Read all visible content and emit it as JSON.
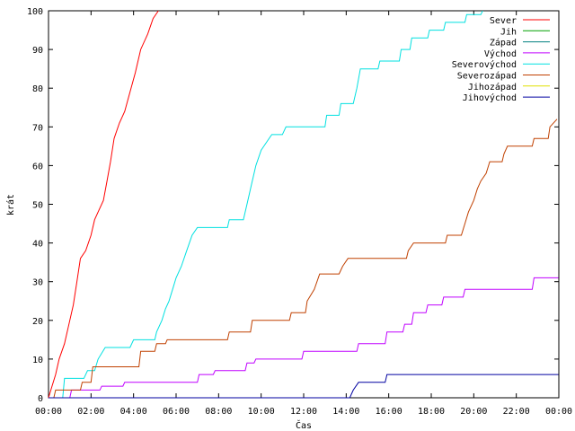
{
  "chart_data": {
    "type": "line",
    "xlabel": "Čas",
    "ylabel": "krát",
    "x_ticks": [
      "00:00",
      "02:00",
      "04:00",
      "06:00",
      "08:00",
      "10:00",
      "12:00",
      "14:00",
      "16:00",
      "18:00",
      "20:00",
      "22:00",
      "00:00"
    ],
    "xlim": [
      "00:00",
      "24:00"
    ],
    "ylim": [
      0,
      100
    ],
    "y_ticks": [
      0,
      10,
      20,
      30,
      40,
      50,
      60,
      70,
      80,
      90,
      100
    ],
    "grid": false,
    "legend_position": "top-right",
    "series": [
      {
        "name": "Sever",
        "color": "#ff0000",
        "points": [
          [
            "00:00",
            0
          ],
          [
            "00:10",
            3
          ],
          [
            "00:20",
            6
          ],
          [
            "00:30",
            10
          ],
          [
            "00:45",
            14
          ],
          [
            "01:00",
            20
          ],
          [
            "01:10",
            24
          ],
          [
            "01:20",
            30
          ],
          [
            "01:30",
            36
          ],
          [
            "01:45",
            38
          ],
          [
            "02:00",
            42
          ],
          [
            "02:10",
            46
          ],
          [
            "02:20",
            48
          ],
          [
            "02:35",
            51
          ],
          [
            "02:45",
            56
          ],
          [
            "02:55",
            61
          ],
          [
            "03:05",
            67
          ],
          [
            "03:20",
            71
          ],
          [
            "03:35",
            74
          ],
          [
            "03:50",
            79
          ],
          [
            "04:05",
            84
          ],
          [
            "04:20",
            90
          ],
          [
            "04:40",
            94
          ],
          [
            "04:55",
            98
          ],
          [
            "05:10",
            100
          ]
        ]
      },
      {
        "name": "Jih",
        "color": "#00a000",
        "points": []
      },
      {
        "name": "Západ",
        "color": "#008080",
        "points": []
      },
      {
        "name": "Východ",
        "color": "#c000ff",
        "points": [
          [
            "00:00",
            0
          ],
          [
            "01:00",
            0
          ],
          [
            "01:05",
            2
          ],
          [
            "02:25",
            2
          ],
          [
            "02:30",
            3
          ],
          [
            "03:30",
            3
          ],
          [
            "03:35",
            4
          ],
          [
            "07:00",
            4
          ],
          [
            "07:05",
            6
          ],
          [
            "07:45",
            6
          ],
          [
            "07:50",
            7
          ],
          [
            "09:15",
            7
          ],
          [
            "09:20",
            9
          ],
          [
            "09:40",
            9
          ],
          [
            "09:45",
            10
          ],
          [
            "11:55",
            10
          ],
          [
            "12:00",
            12
          ],
          [
            "14:30",
            12
          ],
          [
            "14:35",
            14
          ],
          [
            "15:50",
            14
          ],
          [
            "15:55",
            17
          ],
          [
            "16:40",
            17
          ],
          [
            "16:45",
            19
          ],
          [
            "17:05",
            19
          ],
          [
            "17:10",
            22
          ],
          [
            "17:45",
            22
          ],
          [
            "17:50",
            24
          ],
          [
            "18:30",
            24
          ],
          [
            "18:35",
            26
          ],
          [
            "19:30",
            26
          ],
          [
            "19:35",
            28
          ],
          [
            "22:45",
            28
          ],
          [
            "22:50",
            31
          ],
          [
            "23:59",
            31
          ]
        ]
      },
      {
        "name": "Severovýchod",
        "color": "#00e0e0",
        "points": [
          [
            "00:00",
            0
          ],
          [
            "00:40",
            0
          ],
          [
            "00:45",
            5
          ],
          [
            "01:40",
            5
          ],
          [
            "01:50",
            7
          ],
          [
            "02:10",
            7
          ],
          [
            "02:20",
            10
          ],
          [
            "02:40",
            13
          ],
          [
            "03:50",
            13
          ],
          [
            "04:00",
            15
          ],
          [
            "05:00",
            15
          ],
          [
            "05:05",
            17
          ],
          [
            "05:20",
            20
          ],
          [
            "05:30",
            23
          ],
          [
            "05:40",
            25
          ],
          [
            "05:50",
            28
          ],
          [
            "06:00",
            31
          ],
          [
            "06:15",
            34
          ],
          [
            "06:30",
            38
          ],
          [
            "06:45",
            42
          ],
          [
            "07:00",
            44
          ],
          [
            "08:25",
            44
          ],
          [
            "08:30",
            46
          ],
          [
            "09:10",
            46
          ],
          [
            "09:20",
            50
          ],
          [
            "09:35",
            56
          ],
          [
            "09:45",
            60
          ],
          [
            "10:00",
            64
          ],
          [
            "10:15",
            66
          ],
          [
            "10:30",
            68
          ],
          [
            "11:00",
            68
          ],
          [
            "11:10",
            70
          ],
          [
            "13:00",
            70
          ],
          [
            "13:05",
            73
          ],
          [
            "13:40",
            73
          ],
          [
            "13:45",
            76
          ],
          [
            "14:20",
            76
          ],
          [
            "14:30",
            80
          ],
          [
            "14:40",
            85
          ],
          [
            "15:30",
            85
          ],
          [
            "15:35",
            87
          ],
          [
            "16:30",
            87
          ],
          [
            "16:35",
            90
          ],
          [
            "17:00",
            90
          ],
          [
            "17:05",
            93
          ],
          [
            "17:50",
            93
          ],
          [
            "17:55",
            95
          ],
          [
            "18:35",
            95
          ],
          [
            "18:40",
            97
          ],
          [
            "19:35",
            97
          ],
          [
            "19:40",
            99
          ],
          [
            "20:20",
            99
          ],
          [
            "20:25",
            100
          ]
        ]
      },
      {
        "name": "Severozápad",
        "color": "#c04000",
        "points": [
          [
            "00:00",
            0
          ],
          [
            "00:15",
            0
          ],
          [
            "00:20",
            2
          ],
          [
            "01:30",
            2
          ],
          [
            "01:35",
            4
          ],
          [
            "02:00",
            4
          ],
          [
            "02:05",
            8
          ],
          [
            "04:15",
            8
          ],
          [
            "04:20",
            12
          ],
          [
            "05:00",
            12
          ],
          [
            "05:05",
            14
          ],
          [
            "05:30",
            14
          ],
          [
            "05:35",
            15
          ],
          [
            "08:25",
            15
          ],
          [
            "08:30",
            17
          ],
          [
            "09:30",
            17
          ],
          [
            "09:35",
            20
          ],
          [
            "11:20",
            20
          ],
          [
            "11:25",
            22
          ],
          [
            "12:05",
            22
          ],
          [
            "12:10",
            25
          ],
          [
            "12:30",
            28
          ],
          [
            "12:45",
            32
          ],
          [
            "13:40",
            32
          ],
          [
            "13:50",
            34
          ],
          [
            "14:05",
            36
          ],
          [
            "16:50",
            36
          ],
          [
            "16:55",
            38
          ],
          [
            "17:10",
            40
          ],
          [
            "18:40",
            40
          ],
          [
            "18:45",
            42
          ],
          [
            "19:25",
            42
          ],
          [
            "19:35",
            45
          ],
          [
            "19:45",
            48
          ],
          [
            "20:00",
            51
          ],
          [
            "20:10",
            54
          ],
          [
            "20:20",
            56
          ],
          [
            "20:35",
            58
          ],
          [
            "20:45",
            61
          ],
          [
            "21:20",
            61
          ],
          [
            "21:25",
            63
          ],
          [
            "21:35",
            65
          ],
          [
            "22:45",
            65
          ],
          [
            "22:50",
            67
          ],
          [
            "23:30",
            67
          ],
          [
            "23:35",
            70
          ],
          [
            "23:55",
            72
          ]
        ]
      },
      {
        "name": "Jihozápad",
        "color": "#e0e000",
        "points": []
      },
      {
        "name": "Jihovýchod",
        "color": "#0000a0",
        "points": [
          [
            "00:00",
            0
          ],
          [
            "14:10",
            0
          ],
          [
            "14:20",
            2
          ],
          [
            "14:35",
            4
          ],
          [
            "15:50",
            4
          ],
          [
            "15:55",
            6
          ],
          [
            "23:59",
            6
          ]
        ]
      }
    ]
  }
}
